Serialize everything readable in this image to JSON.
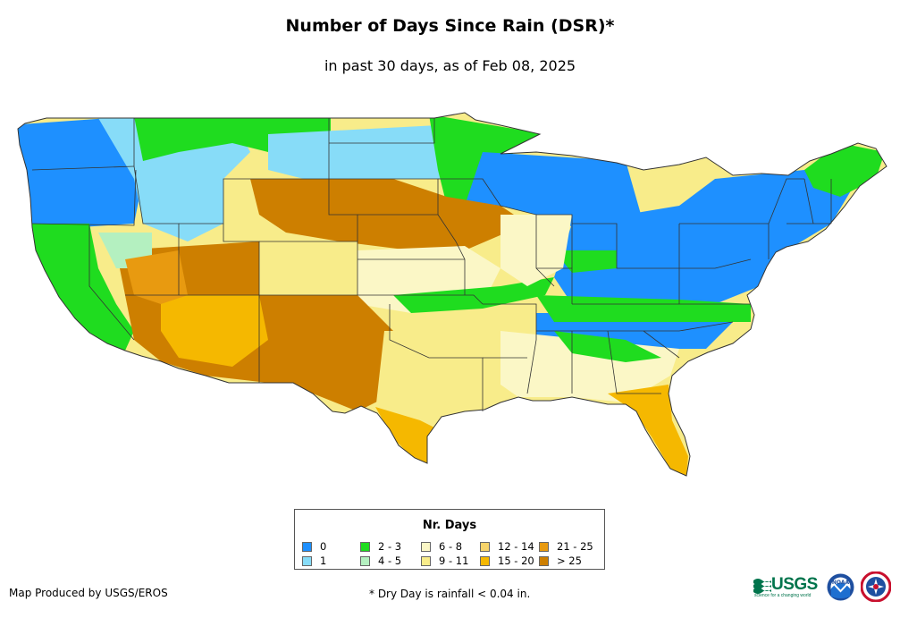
{
  "title": "Number of Days Since Rain (DSR)*",
  "subtitle": "in past 30 days, as of Feb 08, 2025",
  "legend": {
    "title": "Nr. Days",
    "items": [
      {
        "label": "0",
        "color": "#1e90ff"
      },
      {
        "label": "1",
        "color": "#87dcf8"
      },
      {
        "label": "2 - 3",
        "color": "#1fdc1f"
      },
      {
        "label": "4 - 5",
        "color": "#b4f0c0"
      },
      {
        "label": "6 - 8",
        "color": "#fbf7c6"
      },
      {
        "label": "9 - 11",
        "color": "#f8ec8a"
      },
      {
        "label": "12 - 14",
        "color": "#f7d46a"
      },
      {
        "label": "15 - 20",
        "color": "#f5b800"
      },
      {
        "label": "21 - 25",
        "color": "#e89a10"
      },
      {
        "label": "> 25",
        "color": "#cd7f00"
      }
    ]
  },
  "footer": {
    "producer": "Map Produced by USGS/EROS",
    "footnote": "* Dry Day is rainfall < 0.04 in."
  },
  "logos": {
    "usgs": "USGS",
    "usgs_tagline": "science for a changing world",
    "noaa": "NOAA"
  },
  "map": {
    "region": "Contiguous United States",
    "colors": {
      "zero": "#1e90ff",
      "one": "#87dcf8",
      "two_three": "#1fdc1f",
      "four_five": "#b4f0c0",
      "six_eight": "#fbf7c6",
      "nine_eleven": "#f8ec8a",
      "twelve_fourteen": "#f7d46a",
      "fifteen_twenty": "#f5b800",
      "twentyone_twentyfive": "#e89a10",
      "over_twentyfive": "#cd7f00"
    }
  }
}
